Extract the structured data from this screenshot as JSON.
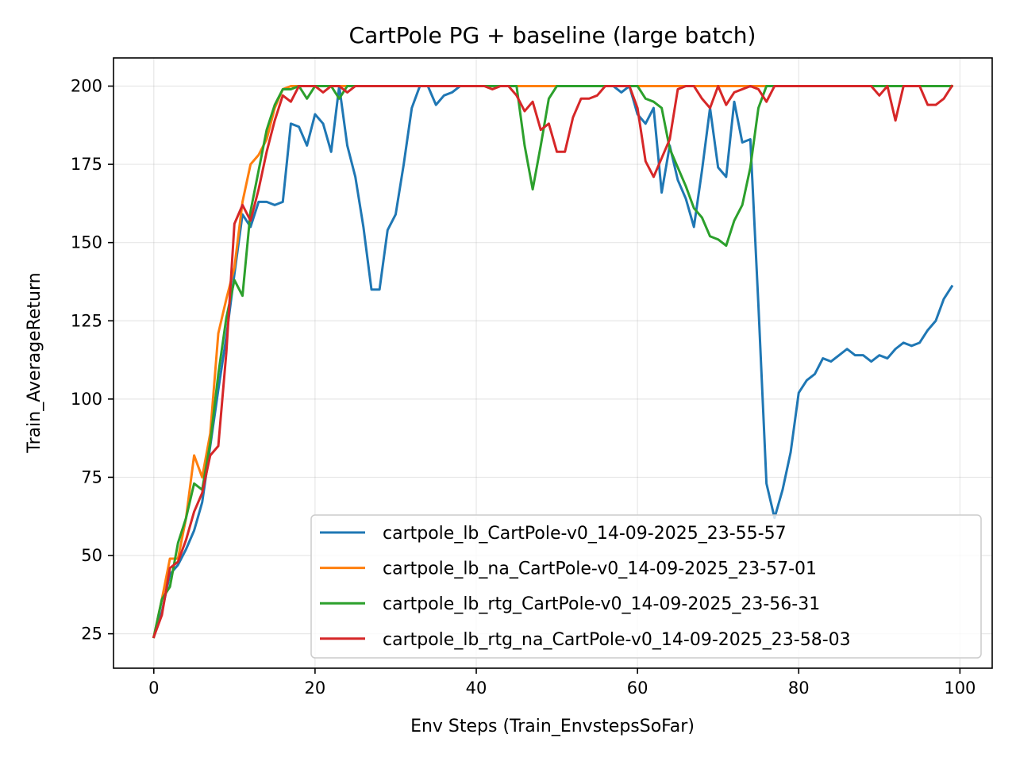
{
  "chart_data": {
    "type": "line",
    "title": "CartPole PG + baseline (large batch)",
    "xlabel": "Env Steps (Train_EnvstepsSoFar)",
    "ylabel": "Train_AverageReturn",
    "xlim": [
      -5,
      104
    ],
    "ylim": [
      14,
      209
    ],
    "xticks": [
      0,
      20,
      40,
      60,
      80,
      100
    ],
    "yticks": [
      25,
      50,
      75,
      100,
      125,
      150,
      175,
      200
    ],
    "grid": true,
    "legend_position": "lower right",
    "series": [
      {
        "name": "cartpole_lb_CartPole-v0_14-09-2025_23-55-57",
        "color": "#1f77b4",
        "values": [
          24,
          32,
          44,
          47,
          52,
          58,
          67,
          85,
          103,
          120,
          140,
          159,
          155,
          163,
          163,
          162,
          163,
          188,
          187,
          181,
          191,
          188,
          179,
          200,
          181,
          171,
          155,
          135,
          135,
          154,
          159,
          175,
          193,
          200,
          200,
          194,
          197,
          198,
          200,
          200,
          200,
          200,
          200,
          200,
          200,
          200,
          200,
          200,
          200,
          200,
          200,
          200,
          200,
          200,
          200,
          200,
          200,
          200,
          198,
          200,
          191,
          188,
          193,
          166,
          181,
          170,
          164,
          155,
          173,
          193,
          174,
          171,
          195,
          182,
          183,
          130,
          73,
          62,
          71,
          83,
          102,
          106,
          108,
          113,
          112,
          114,
          116,
          114,
          114,
          112,
          114,
          113,
          116,
          118,
          117,
          118,
          122,
          125,
          132,
          136
        ]
      },
      {
        "name": "cartpole_lb_na_CartPole-v0_14-09-2025_23-57-01",
        "color": "#ff7f0e",
        "values": [
          24,
          36,
          49,
          49,
          62,
          82,
          75,
          89,
          121,
          132,
          142,
          163,
          175,
          178,
          183,
          193,
          199,
          200,
          200,
          200,
          200,
          200,
          200,
          200,
          200,
          200,
          200,
          200,
          200,
          200,
          200,
          200,
          200,
          200,
          200,
          200,
          200,
          200,
          200,
          200,
          200,
          200,
          200,
          200,
          200,
          200,
          200,
          200,
          200,
          200,
          200,
          200,
          200,
          200,
          200,
          200,
          200,
          200,
          200,
          200,
          200,
          200,
          200,
          200,
          200,
          200,
          200,
          200,
          200,
          200,
          200,
          200,
          200,
          200,
          200,
          200,
          200,
          200,
          200,
          200,
          200,
          200,
          200,
          200,
          200,
          200,
          200,
          200,
          200,
          200,
          200,
          200,
          200,
          200,
          200,
          200,
          200,
          200,
          200,
          200
        ]
      },
      {
        "name": "cartpole_lb_rtg_CartPole-v0_14-09-2025_23-56-31",
        "color": "#2ca02c",
        "values": [
          24,
          36,
          40,
          54,
          62,
          73,
          71,
          86,
          108,
          126,
          138,
          133,
          160,
          173,
          186,
          194,
          199,
          199,
          200,
          196,
          200,
          200,
          200,
          196,
          200,
          200,
          200,
          200,
          200,
          200,
          200,
          200,
          200,
          200,
          200,
          200,
          200,
          200,
          200,
          200,
          200,
          200,
          200,
          200,
          200,
          200,
          181,
          167,
          181,
          196,
          200,
          200,
          200,
          200,
          200,
          200,
          200,
          200,
          200,
          200,
          200,
          196,
          195,
          193,
          180,
          174,
          168,
          161,
          158,
          152,
          151,
          149,
          157,
          162,
          174,
          193,
          200,
          200,
          200,
          200,
          200,
          200,
          200,
          200,
          200,
          200,
          200,
          200,
          200,
          200,
          200,
          200,
          200,
          200,
          200,
          200,
          200,
          200,
          200,
          200
        ]
      },
      {
        "name": "cartpole_lb_rtg_na_CartPole-v0_14-09-2025_23-58-03",
        "color": "#d62728",
        "values": [
          24,
          31,
          46,
          48,
          55,
          64,
          70,
          82,
          85,
          115,
          156,
          162,
          157,
          167,
          179,
          189,
          197,
          195,
          200,
          200,
          200,
          198,
          200,
          200,
          198,
          200,
          200,
          200,
          200,
          200,
          200,
          200,
          200,
          200,
          200,
          200,
          200,
          200,
          200,
          200,
          200,
          200,
          199,
          200,
          200,
          197,
          192,
          195,
          186,
          188,
          179,
          179,
          190,
          196,
          196,
          197,
          200,
          200,
          200,
          200,
          193,
          176,
          171,
          177,
          183,
          199,
          200,
          200,
          196,
          193,
          200,
          194,
          198,
          199,
          200,
          199,
          195,
          200,
          200,
          200,
          200,
          200,
          200,
          200,
          200,
          200,
          200,
          200,
          200,
          200,
          197,
          200,
          189,
          200,
          200,
          200,
          194,
          194,
          196,
          200
        ]
      }
    ]
  }
}
